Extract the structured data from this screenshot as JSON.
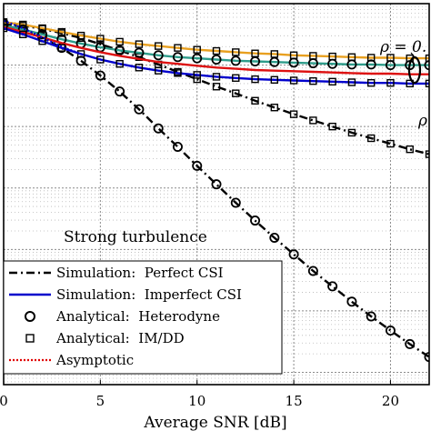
{
  "chart_data": {
    "type": "line",
    "xlabel": "Average SNR [dB]",
    "ylabel": "",
    "title": "",
    "x_ticks": [
      "0",
      "5",
      "10",
      "15",
      "20"
    ],
    "xlim": [
      0,
      22
    ],
    "ylim_log10": [
      -6.2,
      0
    ],
    "y_scale": "log",
    "grid": "dotted, with minor gridlines",
    "legend_position": "bottom-left",
    "annotations": {
      "condition": "Strong turbulence",
      "rho_top": "ρ = 0.",
      "rho_side": "ρ"
    },
    "legend": [
      {
        "label": "Simulation:  Perfect CSI",
        "style": "dash-dot",
        "color": "#000000"
      },
      {
        "label": "Simulation:  Imperfect CSI",
        "style": "solid",
        "color": "#0000cc"
      },
      {
        "label": "Analytical:  Heterodyne",
        "style": "circle-marker",
        "color": "#000000"
      },
      {
        "label": "Analytical:  IM/DD",
        "style": "square-marker",
        "color": "#000000"
      },
      {
        "label": "Asymptotic",
        "style": "dotted",
        "color": "#e00000"
      }
    ],
    "series": [
      {
        "style": "dash-dot",
        "color": "#000000",
        "marker": "circle",
        "role": "perfect-csi-heterodyne",
        "points": [
          [
            0,
            -0.32
          ],
          [
            1,
            -0.42
          ],
          [
            2,
            -0.55
          ],
          [
            3,
            -0.72
          ],
          [
            4,
            -0.93
          ],
          [
            5,
            -1.17
          ],
          [
            6,
            -1.43
          ],
          [
            7,
            -1.72
          ],
          [
            8,
            -2.03
          ],
          [
            9,
            -2.33
          ],
          [
            10,
            -2.64
          ],
          [
            11,
            -2.94
          ],
          [
            12,
            -3.24
          ],
          [
            13,
            -3.53
          ],
          [
            14,
            -3.81
          ],
          [
            15,
            -4.08
          ],
          [
            16,
            -4.35
          ],
          [
            17,
            -4.6
          ],
          [
            18,
            -4.85
          ],
          [
            19,
            -5.09
          ],
          [
            20,
            -5.32
          ],
          [
            21,
            -5.54
          ],
          [
            22,
            -5.75
          ]
        ]
      },
      {
        "style": "dash-dot",
        "color": "#000000",
        "marker": "square",
        "role": "perfect-csi-imdd",
        "points": [
          [
            0,
            -0.32
          ],
          [
            1,
            -0.36
          ],
          [
            2,
            -0.41
          ],
          [
            3,
            -0.48
          ],
          [
            4,
            -0.56
          ],
          [
            5,
            -0.66
          ],
          [
            6,
            -0.76
          ],
          [
            7,
            -0.87
          ],
          [
            8,
            -0.99
          ],
          [
            9,
            -1.11
          ],
          [
            10,
            -1.23
          ],
          [
            11,
            -1.35
          ],
          [
            12,
            -1.46
          ],
          [
            13,
            -1.58
          ],
          [
            14,
            -1.69
          ],
          [
            15,
            -1.8
          ],
          [
            16,
            -1.9
          ],
          [
            17,
            -2.0
          ],
          [
            18,
            -2.1
          ],
          [
            19,
            -2.19
          ],
          [
            20,
            -2.28
          ],
          [
            21,
            -2.37
          ],
          [
            22,
            -2.45
          ]
        ]
      },
      {
        "style": "solid",
        "color": "#e8a020",
        "marker": "square",
        "role": "imperfect-csi-imdd",
        "points": [
          [
            0,
            -0.3
          ],
          [
            1,
            -0.34
          ],
          [
            2,
            -0.4
          ],
          [
            3,
            -0.46
          ],
          [
            4,
            -0.52
          ],
          [
            5,
            -0.57
          ],
          [
            6,
            -0.62
          ],
          [
            7,
            -0.66
          ],
          [
            8,
            -0.69
          ],
          [
            9,
            -0.72
          ],
          [
            10,
            -0.75
          ],
          [
            11,
            -0.77
          ],
          [
            12,
            -0.79
          ],
          [
            13,
            -0.81
          ],
          [
            14,
            -0.82
          ],
          [
            15,
            -0.84
          ],
          [
            16,
            -0.85
          ],
          [
            17,
            -0.86
          ],
          [
            18,
            -0.87
          ],
          [
            19,
            -0.88
          ],
          [
            20,
            -0.88
          ],
          [
            21,
            -0.89
          ],
          [
            22,
            -0.89
          ]
        ]
      },
      {
        "style": "solid",
        "color": "#2e9c8a",
        "marker": "circle",
        "role": "imperfect-csi-heterodyne",
        "points": [
          [
            0,
            -0.35
          ],
          [
            1,
            -0.42
          ],
          [
            2,
            -0.5
          ],
          [
            3,
            -0.58
          ],
          [
            4,
            -0.65
          ],
          [
            5,
            -0.71
          ],
          [
            6,
            -0.76
          ],
          [
            7,
            -0.8
          ],
          [
            8,
            -0.84
          ],
          [
            9,
            -0.87
          ],
          [
            10,
            -0.89
          ],
          [
            11,
            -0.91
          ],
          [
            12,
            -0.93
          ],
          [
            13,
            -0.94
          ],
          [
            14,
            -0.95
          ],
          [
            15,
            -0.96
          ],
          [
            16,
            -0.97
          ],
          [
            17,
            -0.98
          ],
          [
            18,
            -0.99
          ],
          [
            19,
            -0.99
          ],
          [
            20,
            -1.0
          ],
          [
            21,
            -1.0
          ],
          [
            22,
            -1.0
          ]
        ]
      },
      {
        "style": "solid",
        "color": "#dd1111",
        "marker": "none",
        "role": "imperfect-csi-asymptotic",
        "points": [
          [
            0,
            -0.38
          ],
          [
            1,
            -0.46
          ],
          [
            2,
            -0.55
          ],
          [
            3,
            -0.64
          ],
          [
            4,
            -0.72
          ],
          [
            5,
            -0.79
          ],
          [
            6,
            -0.85
          ],
          [
            7,
            -0.9
          ],
          [
            8,
            -0.95
          ],
          [
            9,
            -0.98
          ],
          [
            10,
            -1.01
          ],
          [
            11,
            -1.04
          ],
          [
            12,
            -1.06
          ],
          [
            13,
            -1.08
          ],
          [
            14,
            -1.09
          ],
          [
            15,
            -1.1
          ],
          [
            16,
            -1.11
          ],
          [
            17,
            -1.12
          ],
          [
            18,
            -1.13
          ],
          [
            19,
            -1.14
          ],
          [
            20,
            -1.14
          ],
          [
            21,
            -1.15
          ],
          [
            22,
            -1.15
          ]
        ]
      },
      {
        "style": "solid",
        "color": "#0000cc",
        "marker": "square",
        "role": "imperfect-csi-imdd-lower",
        "points": [
          [
            0,
            -0.4
          ],
          [
            1,
            -0.5
          ],
          [
            2,
            -0.61
          ],
          [
            3,
            -0.72
          ],
          [
            4,
            -0.82
          ],
          [
            5,
            -0.91
          ],
          [
            6,
            -0.98
          ],
          [
            7,
            -1.04
          ],
          [
            8,
            -1.09
          ],
          [
            9,
            -1.13
          ],
          [
            10,
            -1.16
          ],
          [
            11,
            -1.19
          ],
          [
            12,
            -1.21
          ],
          [
            13,
            -1.23
          ],
          [
            14,
            -1.24
          ],
          [
            15,
            -1.25
          ],
          [
            16,
            -1.26
          ],
          [
            17,
            -1.27
          ],
          [
            18,
            -1.28
          ],
          [
            19,
            -1.29
          ],
          [
            20,
            -1.29
          ],
          [
            21,
            -1.3
          ],
          [
            22,
            -1.3
          ]
        ]
      },
      {
        "style": "dotted",
        "color": "#0000cc",
        "marker": "none",
        "role": "asymptotic-early",
        "points": [
          [
            0,
            -0.28
          ],
          [
            1,
            -0.4
          ],
          [
            2,
            -0.55
          ],
          [
            3,
            -0.7
          ],
          [
            4,
            -0.82
          ]
        ]
      }
    ]
  }
}
